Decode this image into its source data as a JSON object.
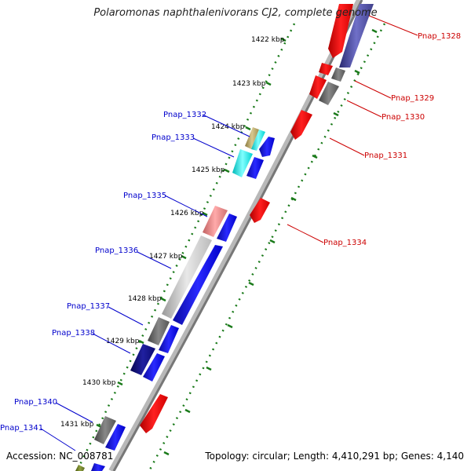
{
  "title": "Polaromonas naphthalenivorans CJ2, complete genome",
  "accession_text": "Accession: NC_008781",
  "topology_text": "Topology: circular; Length: 4,410,291 bp; Genes: 4,140",
  "ticks": [
    "1422 kbp",
    "1423 kbp",
    "1424 kbp",
    "1425 kbp",
    "1426 kbp",
    "1427 kbp",
    "1428 kbp",
    "1429 kbp",
    "1430 kbp",
    "1431 kbp"
  ],
  "genes_left": [
    {
      "label": "Pnap_1332"
    },
    {
      "label": "Pnap_1333"
    },
    {
      "label": "Pnap_1335"
    },
    {
      "label": "Pnap_1336"
    },
    {
      "label": "Pnap_1337"
    },
    {
      "label": "Pnap_1338"
    },
    {
      "label": "Pnap_1340"
    },
    {
      "label": "Pnap_1341"
    }
  ],
  "genes_right": [
    {
      "label": "Pnap_1328"
    },
    {
      "label": "Pnap_1329"
    },
    {
      "label": "Pnap_1330"
    },
    {
      "label": "Pnap_1331"
    },
    {
      "label": "Pnap_1334"
    }
  ],
  "colors": {
    "forward_cds": "#0000ee",
    "reverse_cds": "#ee0000",
    "backbone": "#888888",
    "tick": "#1a7a1a",
    "left_label": "#0000cc",
    "right_label": "#cc0000",
    "leader_left": "#0000cc",
    "leader_right": "#cc0000"
  }
}
